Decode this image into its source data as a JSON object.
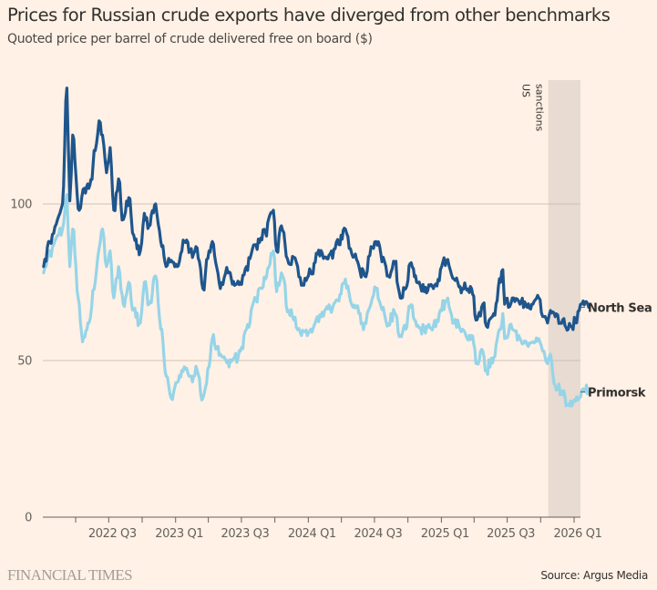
{
  "header": {
    "title": "Prices for Russian crude exports have diverged from other benchmarks",
    "subtitle": "Quoted price per barrel of crude delivered free on board ($)"
  },
  "footer": {
    "brand": "FINANCIAL TIMES",
    "source": "Source: Argus Media"
  },
  "colors": {
    "background": "#fff1e5",
    "north_sea": "#1e558c",
    "primorsk": "#96d4e8",
    "gridline": "#ccc1b7",
    "sanctions_band": "#e7dbd2",
    "axis": "#66605c"
  },
  "chart_data": {
    "type": "line",
    "title": "Prices for Russian crude exports have diverged from other benchmarks",
    "subtitle": "Quoted price per barrel of crude delivered free on board ($)",
    "xlabel": "",
    "ylabel": "",
    "ylim": [
      0,
      130
    ],
    "yticks": [
      0,
      50,
      100
    ],
    "xlim": [
      "2022-01-01",
      "2026-02-15"
    ],
    "xticks": [
      {
        "date": "2022-04-01",
        "label": ""
      },
      {
        "date": "2022-07-01",
        "label": "2022 Q3"
      },
      {
        "date": "2022-10-01",
        "label": ""
      },
      {
        "date": "2023-01-01",
        "label": "2023 Q1"
      },
      {
        "date": "2023-04-01",
        "label": ""
      },
      {
        "date": "2023-07-01",
        "label": "2023 Q3"
      },
      {
        "date": "2023-10-01",
        "label": ""
      },
      {
        "date": "2024-01-01",
        "label": "2024 Q1"
      },
      {
        "date": "2024-04-01",
        "label": ""
      },
      {
        "date": "2024-07-01",
        "label": "2024 Q3"
      },
      {
        "date": "2024-10-01",
        "label": ""
      },
      {
        "date": "2025-01-01",
        "label": "2025 Q1"
      },
      {
        "date": "2025-04-01",
        "label": ""
      },
      {
        "date": "2025-07-01",
        "label": "2025 Q3"
      },
      {
        "date": "2025-10-01",
        "label": ""
      },
      {
        "date": "2026-01-01",
        "label": "2026 Q1"
      }
    ],
    "grid": true,
    "legend": "inline-right",
    "annotations": [
      {
        "type": "band",
        "start": "2025-10-22",
        "end": "2026-02-15",
        "label": "US sanctions"
      }
    ],
    "series": [
      {
        "name": "North Sea",
        "points": [
          [
            "2022-01-03",
            80
          ],
          [
            "2022-01-20",
            88
          ],
          [
            "2022-02-10",
            95
          ],
          [
            "2022-02-24",
            100
          ],
          [
            "2022-03-08",
            137
          ],
          [
            "2022-03-16",
            101
          ],
          [
            "2022-03-24",
            122
          ],
          [
            "2022-04-11",
            98
          ],
          [
            "2022-04-25",
            105
          ],
          [
            "2022-05-10",
            106
          ],
          [
            "2022-05-25",
            117
          ],
          [
            "2022-06-08",
            126
          ],
          [
            "2022-06-14",
            122
          ],
          [
            "2022-06-25",
            110
          ],
          [
            "2022-07-05",
            118
          ],
          [
            "2022-07-15",
            98
          ],
          [
            "2022-07-28",
            108
          ],
          [
            "2022-08-10",
            95
          ],
          [
            "2022-08-25",
            102
          ],
          [
            "2022-09-08",
            90
          ],
          [
            "2022-09-26",
            85
          ],
          [
            "2022-10-07",
            97
          ],
          [
            "2022-10-20",
            93
          ],
          [
            "2022-11-07",
            100
          ],
          [
            "2022-11-21",
            88
          ],
          [
            "2022-12-06",
            80
          ],
          [
            "2022-12-20",
            82
          ],
          [
            "2023-01-05",
            80
          ],
          [
            "2023-01-25",
            88
          ],
          [
            "2023-02-10",
            85
          ],
          [
            "2023-03-01",
            86
          ],
          [
            "2023-03-17",
            73
          ],
          [
            "2023-04-03",
            85
          ],
          [
            "2023-04-12",
            88
          ],
          [
            "2023-05-04",
            73
          ],
          [
            "2023-05-25",
            78
          ],
          [
            "2023-06-12",
            74
          ],
          [
            "2023-06-28",
            75
          ],
          [
            "2023-07-15",
            80
          ],
          [
            "2023-08-10",
            87
          ],
          [
            "2023-09-05",
            91
          ],
          [
            "2023-09-27",
            98
          ],
          [
            "2023-10-06",
            85
          ],
          [
            "2023-10-19",
            93
          ],
          [
            "2023-11-08",
            81
          ],
          [
            "2023-11-22",
            83
          ],
          [
            "2023-12-13",
            74
          ],
          [
            "2024-01-08",
            78
          ],
          [
            "2024-01-26",
            84
          ],
          [
            "2024-02-15",
            83
          ],
          [
            "2024-03-01",
            84
          ],
          [
            "2024-03-25",
            87
          ],
          [
            "2024-04-12",
            92
          ],
          [
            "2024-05-03",
            83
          ],
          [
            "2024-06-04",
            77
          ],
          [
            "2024-06-25",
            86
          ],
          [
            "2024-07-05",
            88
          ],
          [
            "2024-07-25",
            83
          ],
          [
            "2024-08-05",
            77
          ],
          [
            "2024-08-26",
            81
          ],
          [
            "2024-09-10",
            70
          ],
          [
            "2024-09-25",
            73
          ],
          [
            "2024-10-07",
            81
          ],
          [
            "2024-10-25",
            75
          ],
          [
            "2024-11-15",
            72
          ],
          [
            "2024-12-10",
            73
          ],
          [
            "2025-01-15",
            82
          ],
          [
            "2025-02-05",
            76
          ],
          [
            "2025-02-28",
            73
          ],
          [
            "2025-03-25",
            73
          ],
          [
            "2025-04-09",
            63
          ],
          [
            "2025-04-25",
            68
          ],
          [
            "2025-05-05",
            61
          ],
          [
            "2025-05-25",
            65
          ],
          [
            "2025-06-13",
            75
          ],
          [
            "2025-06-19",
            79
          ],
          [
            "2025-06-24",
            68
          ],
          [
            "2025-07-15",
            70
          ],
          [
            "2025-08-05",
            68
          ],
          [
            "2025-08-25",
            67
          ],
          [
            "2025-09-10",
            68
          ],
          [
            "2025-09-26",
            70
          ],
          [
            "2025-10-10",
            64
          ],
          [
            "2025-10-20",
            62
          ],
          [
            "2025-10-28",
            66
          ],
          [
            "2025-11-10",
            64
          ],
          [
            "2025-12-01",
            63
          ],
          [
            "2025-12-16",
            60
          ],
          [
            "2026-01-05",
            62
          ],
          [
            "2026-01-15",
            66
          ],
          [
            "2026-01-26",
            69
          ],
          [
            "2026-02-10",
            67
          ]
        ]
      },
      {
        "name": "Primorsk",
        "points": [
          [
            "2022-01-03",
            78
          ],
          [
            "2022-01-20",
            85
          ],
          [
            "2022-02-10",
            90
          ],
          [
            "2022-02-24",
            92
          ],
          [
            "2022-03-08",
            103
          ],
          [
            "2022-03-16",
            80
          ],
          [
            "2022-03-24",
            92
          ],
          [
            "2022-04-08",
            70
          ],
          [
            "2022-04-20",
            56
          ],
          [
            "2022-05-05",
            62
          ],
          [
            "2022-05-25",
            75
          ],
          [
            "2022-06-08",
            88
          ],
          [
            "2022-06-14",
            92
          ],
          [
            "2022-06-25",
            80
          ],
          [
            "2022-07-05",
            85
          ],
          [
            "2022-07-15",
            70
          ],
          [
            "2022-07-28",
            80
          ],
          [
            "2022-08-10",
            68
          ],
          [
            "2022-08-25",
            75
          ],
          [
            "2022-09-08",
            66
          ],
          [
            "2022-09-26",
            62
          ],
          [
            "2022-10-07",
            75
          ],
          [
            "2022-10-20",
            68
          ],
          [
            "2022-11-07",
            77
          ],
          [
            "2022-11-21",
            60
          ],
          [
            "2022-12-06",
            45
          ],
          [
            "2022-12-20",
            38
          ],
          [
            "2023-01-05",
            43
          ],
          [
            "2023-01-25",
            48
          ],
          [
            "2023-02-10",
            45
          ],
          [
            "2023-03-01",
            47
          ],
          [
            "2023-03-17",
            38
          ],
          [
            "2023-04-03",
            48
          ],
          [
            "2023-04-12",
            57
          ],
          [
            "2023-05-04",
            52
          ],
          [
            "2023-05-25",
            50
          ],
          [
            "2023-06-12",
            51
          ],
          [
            "2023-06-28",
            53
          ],
          [
            "2023-07-15",
            60
          ],
          [
            "2023-08-10",
            70
          ],
          [
            "2023-09-05",
            76
          ],
          [
            "2023-09-27",
            85
          ],
          [
            "2023-10-06",
            72
          ],
          [
            "2023-10-19",
            78
          ],
          [
            "2023-11-08",
            66
          ],
          [
            "2023-11-22",
            63
          ],
          [
            "2023-12-13",
            58
          ],
          [
            "2024-01-08",
            60
          ],
          [
            "2024-01-26",
            64
          ],
          [
            "2024-02-15",
            66
          ],
          [
            "2024-03-01",
            67
          ],
          [
            "2024-03-25",
            69
          ],
          [
            "2024-04-12",
            76
          ],
          [
            "2024-05-03",
            67
          ],
          [
            "2024-06-04",
            62
          ],
          [
            "2024-06-25",
            70
          ],
          [
            "2024-07-05",
            73
          ],
          [
            "2024-07-25",
            67
          ],
          [
            "2024-08-05",
            61
          ],
          [
            "2024-08-26",
            65
          ],
          [
            "2024-09-10",
            58
          ],
          [
            "2024-09-25",
            60
          ],
          [
            "2024-10-07",
            67
          ],
          [
            "2024-10-25",
            61
          ],
          [
            "2024-11-15",
            60
          ],
          [
            "2024-12-10",
            61
          ],
          [
            "2025-01-15",
            69
          ],
          [
            "2025-02-05",
            62
          ],
          [
            "2025-02-28",
            60
          ],
          [
            "2025-03-25",
            58
          ],
          [
            "2025-04-09",
            49
          ],
          [
            "2025-04-25",
            53
          ],
          [
            "2025-05-05",
            47
          ],
          [
            "2025-05-25",
            51
          ],
          [
            "2025-06-13",
            60
          ],
          [
            "2025-06-19",
            65
          ],
          [
            "2025-06-24",
            57
          ],
          [
            "2025-07-15",
            60
          ],
          [
            "2025-08-05",
            57
          ],
          [
            "2025-08-25",
            55
          ],
          [
            "2025-09-10",
            56
          ],
          [
            "2025-09-26",
            57
          ],
          [
            "2025-10-10",
            53
          ],
          [
            "2025-10-20",
            49
          ],
          [
            "2025-10-28",
            52
          ],
          [
            "2025-11-10",
            42
          ],
          [
            "2025-12-01",
            39
          ],
          [
            "2025-12-16",
            36
          ],
          [
            "2026-01-05",
            37
          ],
          [
            "2026-01-15",
            38
          ],
          [
            "2026-01-26",
            41
          ],
          [
            "2026-02-10",
            40
          ]
        ]
      }
    ]
  }
}
